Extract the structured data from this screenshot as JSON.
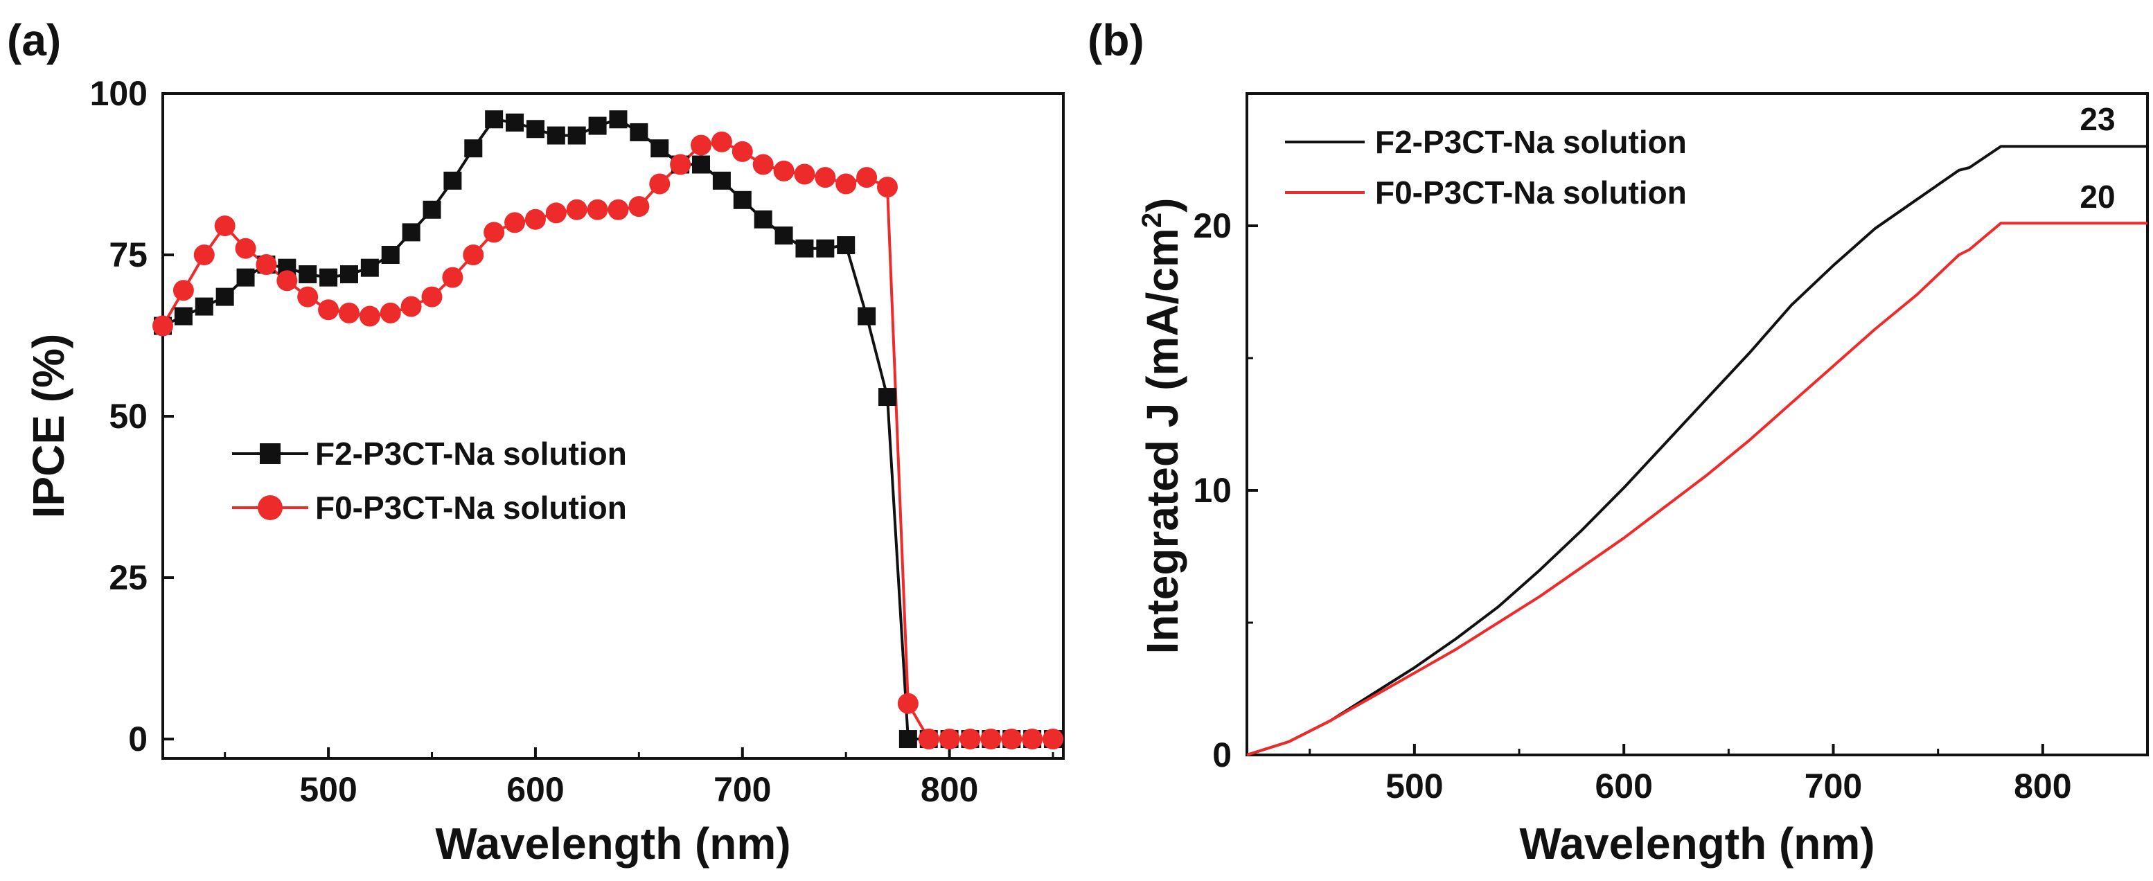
{
  "chart_data": [
    {
      "panel_label": "(a)",
      "type": "line",
      "xlabel": "Wavelength (nm)",
      "ylabel": "IPCE (%)",
      "xlim": [
        420,
        855
      ],
      "ylim": [
        -3,
        100
      ],
      "xticks": [
        500,
        600,
        700,
        800
      ],
      "yticks": [
        0,
        25,
        50,
        75,
        100
      ],
      "xtick_labels": [
        "500",
        "600",
        "700",
        "800"
      ],
      "ytick_labels": [
        "0",
        "25",
        "50",
        "75",
        "100"
      ],
      "legend_position": "center-left",
      "series": [
        {
          "name": "F2-P3CT-Na solution",
          "color": "#111111",
          "marker": "square",
          "x": [
            420,
            430,
            440,
            450,
            460,
            470,
            480,
            490,
            500,
            510,
            520,
            530,
            540,
            550,
            560,
            570,
            580,
            590,
            600,
            610,
            620,
            630,
            640,
            650,
            660,
            670,
            680,
            690,
            700,
            710,
            720,
            730,
            740,
            750,
            760,
            770,
            780,
            790,
            800,
            810,
            820,
            830,
            840,
            850
          ],
          "y": [
            64,
            65.5,
            67,
            68.5,
            71.5,
            73.5,
            73,
            72,
            71.5,
            72,
            73,
            75,
            78.5,
            82,
            86.5,
            91.5,
            96,
            95.5,
            94.5,
            93.5,
            93.5,
            95,
            96,
            94,
            91.5,
            89,
            89,
            86.5,
            83.5,
            80.5,
            78,
            76,
            76,
            76.5,
            65.5,
            53,
            0,
            0,
            0,
            0,
            0,
            0,
            0,
            0
          ]
        },
        {
          "name": "F0-P3CT-Na solution",
          "color": "#ee2b2b",
          "marker": "circle",
          "x": [
            420,
            430,
            440,
            450,
            460,
            470,
            480,
            490,
            500,
            510,
            520,
            530,
            540,
            550,
            560,
            570,
            580,
            590,
            600,
            610,
            620,
            630,
            640,
            650,
            660,
            670,
            680,
            690,
            700,
            710,
            720,
            730,
            740,
            750,
            760,
            770,
            780,
            790,
            800,
            810,
            820,
            830,
            840,
            850
          ],
          "y": [
            64,
            69.5,
            75,
            79.5,
            76,
            73.5,
            71,
            68.5,
            66.5,
            66,
            65.5,
            66,
            67,
            68.5,
            71.5,
            75,
            78.5,
            80,
            80.5,
            81.5,
            82,
            82,
            82,
            82.5,
            86,
            89,
            92,
            92.5,
            91,
            89,
            88,
            87.5,
            87,
            86,
            87,
            85.5,
            5.5,
            0,
            0,
            0,
            0,
            0,
            0,
            0
          ]
        }
      ]
    },
    {
      "panel_label": "(b)",
      "type": "line",
      "xlabel": "Wavelength (nm)",
      "ylabel": "Integrated J (mA/cm",
      "ylabel_sup": "2",
      "ylabel_close": ")",
      "xlim": [
        420,
        850
      ],
      "ylim": [
        0,
        25
      ],
      "xticks": [
        500,
        600,
        700,
        800
      ],
      "yticks": [
        0,
        10,
        20
      ],
      "xtick_labels": [
        "500",
        "600",
        "700",
        "800"
      ],
      "ytick_labels": [
        "0",
        "10",
        "20"
      ],
      "legend_position": "top-left",
      "annotations": [
        "23",
        "20"
      ],
      "series": [
        {
          "name": "F2-P3CT-Na solution",
          "color": "#111111",
          "x": [
            420,
            440,
            460,
            480,
            500,
            520,
            540,
            560,
            580,
            600,
            620,
            640,
            660,
            680,
            700,
            720,
            740,
            760,
            765,
            780,
            790,
            850
          ],
          "y": [
            0,
            0.5,
            1.3,
            2.3,
            3.3,
            4.4,
            5.6,
            7.0,
            8.5,
            10.1,
            11.8,
            13.5,
            15.2,
            17.0,
            18.5,
            19.9,
            21.0,
            22.1,
            22.2,
            23,
            23,
            23
          ]
        },
        {
          "name": "F0-P3CT-Na solution",
          "color": "#ee2b2b",
          "x": [
            420,
            440,
            460,
            480,
            500,
            520,
            540,
            560,
            580,
            600,
            620,
            640,
            660,
            680,
            700,
            720,
            740,
            760,
            765,
            780,
            790,
            850
          ],
          "y": [
            0,
            0.5,
            1.3,
            2.2,
            3.1,
            4.0,
            5.0,
            6.0,
            7.1,
            8.2,
            9.4,
            10.6,
            11.9,
            13.3,
            14.7,
            16.1,
            17.4,
            18.9,
            19.1,
            20.1,
            20.1,
            20.1
          ]
        }
      ]
    }
  ]
}
